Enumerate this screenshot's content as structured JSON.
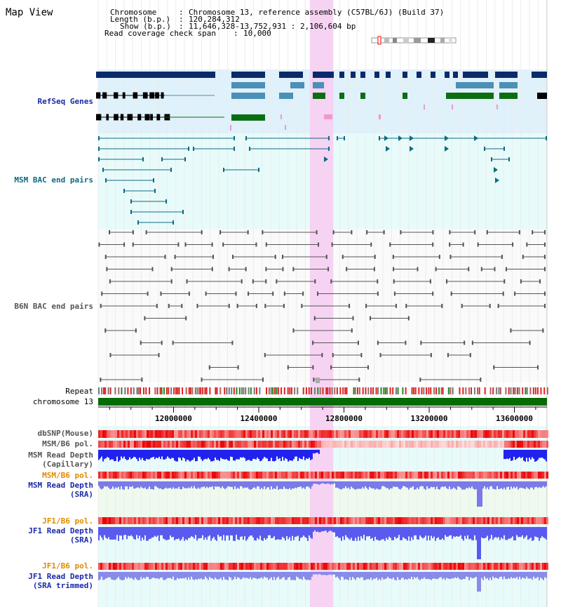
{
  "view_title": "Map View",
  "info": {
    "chromosome_label": "Chromosome",
    "chromosome_value": "Chromosome 13, reference assembly (C57BL/6J) (Build 37)",
    "length_label": "Length (b.p.)",
    "length_value": "120,284,312",
    "show_label": "Show (b.p.)",
    "show_value": "11,646,328-13,752,931 : 2,106,604 bp",
    "coverage_label": "Read coverage check span",
    "coverage_value": "10,000"
  },
  "tracks": {
    "refseq": "RefSeq Genes",
    "msm_bac": "MSM BAC end pairs",
    "b6n_bac": "B6N BAC end pairs",
    "repeat": "Repeat",
    "chromosome": "chromosome 13",
    "dbsnp": "dbSNP(Mouse)",
    "msm_b6_pol_1": "MSM/B6 pol.",
    "msm_depth_cap_1": "MSM Read Depth",
    "msm_depth_cap_2": "(Capillary)",
    "msm_b6_pol_2": "MSM/B6 pol.",
    "msm_depth_sra_1": "MSM Read Depth",
    "msm_depth_sra_2": "(SRA)",
    "jf1_b6_pol_1": "JF1/B6 pol.",
    "jf1_depth_sra_1": "JF1 Read Depth",
    "jf1_depth_sra_2": "(SRA)",
    "jf1_b6_pol_2": "JF1/B6 pol.",
    "jf1_depth_trim_1": "JF1 Read Depth",
    "jf1_depth_trim_2": "(SRA trimmed)"
  },
  "axis": {
    "ticks": [
      "12000000",
      "12400000",
      "12800000",
      "13200000",
      "13600000"
    ],
    "tick_values": [
      12000000,
      12400000,
      12800000,
      13200000,
      13600000
    ],
    "start": 11646328,
    "end": 13752931
  },
  "highlight": {
    "start": 12640000,
    "end": 12750000
  },
  "colors": {
    "refseq_bg": "#dff1fb",
    "msm_bac_bg": "#e8fbfb",
    "highlight": "#f6d3f3",
    "gene_dark": "#0b2a6b",
    "gene_teal": "#4a90b8",
    "gene_green": "#0b6e13",
    "msm_bac": "#0e6a82",
    "b6n_bac": "#555555",
    "chrom": "#056b05",
    "depth": "#3535ee",
    "pol": "#ee3333"
  }
}
